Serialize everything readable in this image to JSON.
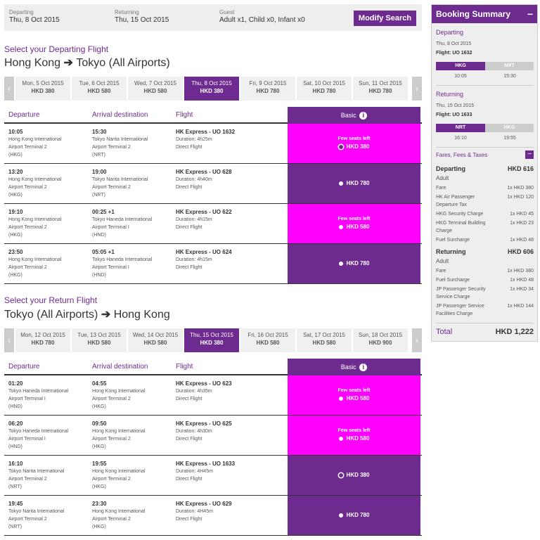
{
  "search": {
    "departing_label": "Departing",
    "departing_value": "Thu, 8 Oct 2015",
    "returning_label": "Returning",
    "returning_value": "Thu, 15 Oct 2015",
    "guest_label": "Guest",
    "guest_value": "Adult x1, Child x0, Infant x0",
    "modify_label": "Modify Search"
  },
  "departing": {
    "title": "Select your Departing Flight",
    "route_from": "Hong Kong",
    "route_to": "Tokyo (All Airports)",
    "dates": [
      {
        "date": "Mon, 5 Oct 2015",
        "price": "HKD 380"
      },
      {
        "date": "Tue, 6 Oct 2015",
        "price": "HKD 580"
      },
      {
        "date": "Wed, 7 Oct 2015",
        "price": "HKD 580"
      },
      {
        "date": "Thu, 8 Oct 2015",
        "price": "HKD 380"
      },
      {
        "date": "Fri, 9 Oct 2015",
        "price": "HKD 780"
      },
      {
        "date": "Sat, 10 Oct 2015",
        "price": "HKD 780"
      },
      {
        "date": "Sun, 11 Oct 2015",
        "price": "HKD 780"
      }
    ],
    "headers": {
      "departure": "Departure",
      "arrival": "Arrival destination",
      "flight": "Flight",
      "basic": "Basic"
    },
    "flights": [
      {
        "dep_time": "10:05",
        "dep_l1": "Hong Kong International",
        "dep_l2": "Airport Terminal 2",
        "dep_code": "(HKG)",
        "arr_time": "15:30",
        "arr_l1": "Tokyo Narita International",
        "arr_l2": "Airport Terminal 2",
        "arr_code": "(NRT)",
        "flight": "HK Express - UO 1632",
        "duration": "Duration: 4h25m",
        "type": "Direct Flight",
        "few": "Few seats left",
        "price": "HKD 380"
      },
      {
        "dep_time": "13:20",
        "dep_l1": "Hong Kong International",
        "dep_l2": "Airport Terminal 2",
        "dep_code": "(HKG)",
        "arr_time": "19:00",
        "arr_l1": "Tokyo Narita International",
        "arr_l2": "Airport Terminal 2",
        "arr_code": "(NRT)",
        "flight": "HK Express - UO 628",
        "duration": "Duration: 4h40m",
        "type": "Direct Flight",
        "few": "",
        "price": "HKD 780"
      },
      {
        "dep_time": "19:10",
        "dep_l1": "Hong Kong International",
        "dep_l2": "Airport Terminal 2",
        "dep_code": "(HKG)",
        "arr_time": "00:25 +1",
        "arr_l1": "Tokyo Haneda International",
        "arr_l2": "Airport Terminal I",
        "arr_code": "(HND)",
        "flight": "HK Express - UO 622",
        "duration": "Duration: 4h15m",
        "type": "Direct Flight",
        "few": "Few seats left",
        "price": "HKD 580"
      },
      {
        "dep_time": "23:50",
        "dep_l1": "Hong Kong International",
        "dep_l2": "Airport Terminal 2",
        "dep_code": "(HKG)",
        "arr_time": "05:05 +1",
        "arr_l1": "Tokyo Haneda International",
        "arr_l2": "Airport Terminal I",
        "arr_code": "(HND)",
        "flight": "HK Express - UO 624",
        "duration": "Duration: 4h15m",
        "type": "Direct Flight",
        "few": "",
        "price": "HKD 780"
      }
    ]
  },
  "returning": {
    "title": "Select your Return Flight",
    "route_from": "Tokyo (All Airports)",
    "route_to": "Hong Kong",
    "dates": [
      {
        "date": "Mon, 12 Oct 2015",
        "price": "HKD 780"
      },
      {
        "date": "Tue, 13 Oct 2015",
        "price": "HKD 580"
      },
      {
        "date": "Wed, 14 Oct 2015",
        "price": "HKD 580"
      },
      {
        "date": "Thu, 15 Oct 2015",
        "price": "HKD 380"
      },
      {
        "date": "Fri, 16 Oct 2015",
        "price": "HKD 580"
      },
      {
        "date": "Sat, 17 Oct 2015",
        "price": "HKD 580"
      },
      {
        "date": "Sun, 18 Oct 2015",
        "price": "HKD 900"
      }
    ],
    "headers": {
      "departure": "Departure",
      "arrival": "Arrival destination",
      "flight": "Flight",
      "basic": "Basic"
    },
    "flights": [
      {
        "dep_time": "01:20",
        "dep_l1": "Tokyo Haneda International",
        "dep_l2": "Airport Terminal I",
        "dep_code": "(HND)",
        "arr_time": "04:55",
        "arr_l1": "Hong Kong International",
        "arr_l2": "Airport Terminal 2",
        "arr_code": "(HKG)",
        "flight": "HK Express - UO 623",
        "duration": "Duration: 4h35m",
        "type": "Direct Flight",
        "few": "Few seats left",
        "price": "HKD 580"
      },
      {
        "dep_time": "06:20",
        "dep_l1": "Tokyo Haneda International",
        "dep_l2": "Airport Terminal I",
        "dep_code": "(HND)",
        "arr_time": "09:50",
        "arr_l1": "Hong Kong International",
        "arr_l2": "Airport Terminal 2",
        "arr_code": "(HKG)",
        "flight": "HK Express - UO 625",
        "duration": "Duration: 4h30m",
        "type": "Direct Flight",
        "few": "Few seats left",
        "price": "HKD 580"
      },
      {
        "dep_time": "16:10",
        "dep_l1": "Tokyo Narita International",
        "dep_l2": "Airport Terminal 2",
        "dep_code": "(NRT)",
        "arr_time": "19:55",
        "arr_l1": "Hong Kong International",
        "arr_l2": "Airport Terminal 2",
        "arr_code": "(HKG)",
        "flight": "HK Express - UO 1633",
        "duration": "Duration: 4H45m",
        "type": "Direct Flight",
        "few": "",
        "price": "HKD 380"
      },
      {
        "dep_time": "19:45",
        "dep_l1": "Tokyo Narita International",
        "dep_l2": "Airport Terminal 2",
        "dep_code": "(NRT)",
        "arr_time": "23:30",
        "arr_l1": "Hong Kong International",
        "arr_l2": "Airport Terminal 2",
        "arr_code": "(HKG)",
        "flight": "HK Express - UO 629",
        "duration": "Duration: 4H45m",
        "type": "Direct Flight",
        "few": "",
        "price": "HKD 780"
      }
    ]
  },
  "summary": {
    "title": "Booking Summary",
    "collapse": "−",
    "departing_label": "Departing",
    "departing_date": "Thu, 8 Oct 2015",
    "departing_flight": "Flight: UO 1632",
    "departing_from": "HKG",
    "departing_to": "NRT",
    "departing_dep_time": "10:05",
    "departing_arr_time": "15:30",
    "returning_label": "Returning",
    "returning_date": "Thu, 15 Oct 2015",
    "returning_flight": "Flight: UO 1633",
    "returning_from": "NRT",
    "returning_to": "HKG",
    "returning_dep_time": "16:10",
    "returning_arr_time": "19:55",
    "fees_label": "Fares, Fees & Taxes",
    "fees_departing_label": "Departing",
    "fees_departing_amount": "HKD 616",
    "fees_departing_sub": "Adult",
    "fees_departing_lines": [
      {
        "label": "Fare",
        "amount": "1x HKD 380"
      },
      {
        "label": "HK Air Passenger Departure Tax",
        "amount": "1x HKD 120"
      },
      {
        "label": "HKG Security Charge",
        "amount": "1x HKD 45"
      },
      {
        "label": "HKG Terminal Building Charge",
        "amount": "1x HKD 23"
      },
      {
        "label": "Fuel Surcharge",
        "amount": "1x HKD 48"
      }
    ],
    "fees_returning_label": "Returning",
    "fees_returning_amount": "HKD 606",
    "fees_returning_sub": "Adult",
    "fees_returning_lines": [
      {
        "label": "Fare",
        "amount": "1x HKD 380"
      },
      {
        "label": "Fuel Surcharge",
        "amount": "1x HKD 48"
      },
      {
        "label": "JP Passenger Security Service Charge",
        "amount": "1x HKD 34"
      },
      {
        "label": "JP Passenger Service Facilities Charge",
        "amount": "1x HKD 144"
      }
    ],
    "total_label": "Total",
    "total_amount": "HKD 1,222"
  },
  "icons": {
    "arrow_left": "chevron-left-icon",
    "arrow_right": "chevron-right-icon",
    "route_arrow": "arrow-right-icon",
    "info": "info-icon"
  },
  "colors": {
    "accent": "#6e2b8f",
    "few_seats": "#ff00ff"
  }
}
